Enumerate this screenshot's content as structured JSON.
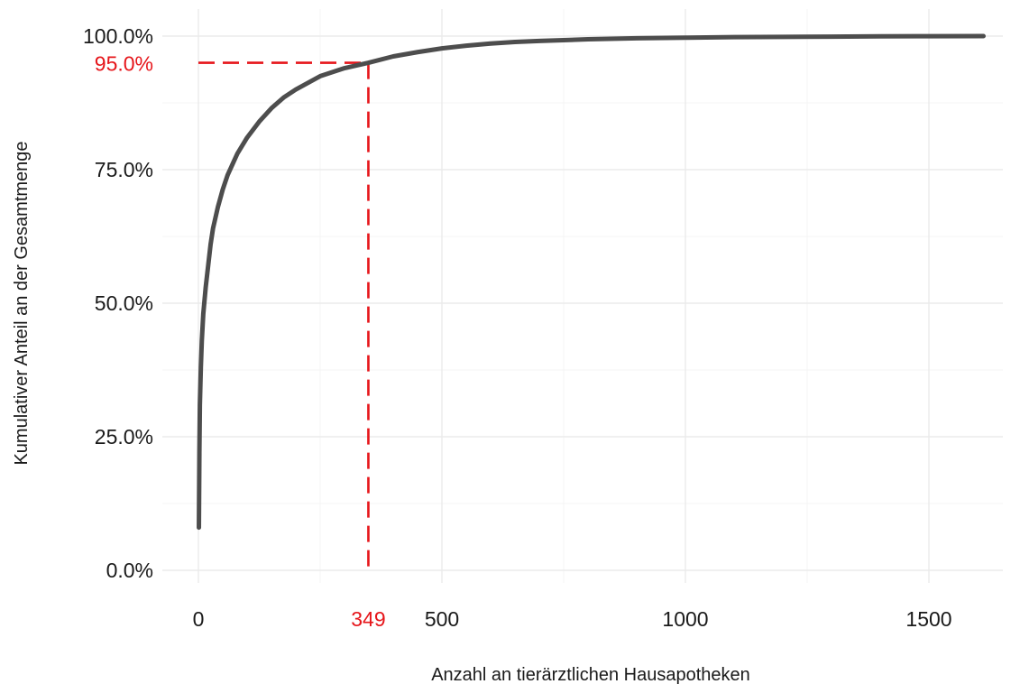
{
  "chart_data": {
    "type": "line",
    "title": "",
    "xlabel": "Anzahl an tierärztlichen Hausapotheken",
    "ylabel": "Kumulativer Anteil an der Gesamtmenge",
    "xlim": [
      0,
      1612
    ],
    "ylim": [
      0,
      1
    ],
    "x_ticks": [
      {
        "value": 0,
        "label": "0"
      },
      {
        "value": 500,
        "label": "500"
      },
      {
        "value": 1000,
        "label": "1000"
      },
      {
        "value": 1500,
        "label": "1500"
      }
    ],
    "y_ticks": [
      {
        "value": 0.0,
        "label": "0.0%"
      },
      {
        "value": 0.25,
        "label": "25.0%"
      },
      {
        "value": 0.5,
        "label": "50.0%"
      },
      {
        "value": 0.75,
        "label": "75.0%"
      },
      {
        "value": 1.0,
        "label": "100.0%"
      }
    ],
    "grid": true,
    "legend": "none",
    "line_color": "#4d4d4d",
    "highlight_color": "#e6151a",
    "series": [
      {
        "x": [
          1,
          2,
          3,
          5,
          7,
          10,
          15,
          20,
          25,
          30,
          40,
          50,
          60,
          70,
          80,
          100,
          125,
          150,
          175,
          200,
          250,
          300,
          349,
          400,
          450,
          500,
          550,
          600,
          650,
          700,
          800,
          900,
          1000,
          1100,
          1200,
          1300,
          1400,
          1500,
          1612
        ],
        "y": [
          0.08,
          0.22,
          0.31,
          0.38,
          0.43,
          0.48,
          0.53,
          0.57,
          0.61,
          0.64,
          0.68,
          0.713,
          0.74,
          0.76,
          0.78,
          0.81,
          0.84,
          0.865,
          0.885,
          0.9,
          0.925,
          0.94,
          0.95,
          0.962,
          0.97,
          0.977,
          0.982,
          0.986,
          0.989,
          0.991,
          0.994,
          0.996,
          0.997,
          0.998,
          0.9985,
          0.999,
          0.9995,
          0.9998,
          1.0
        ]
      }
    ],
    "marker": {
      "x": 349,
      "y": 0.95,
      "x_label": "349",
      "y_label": "95.0%"
    }
  }
}
